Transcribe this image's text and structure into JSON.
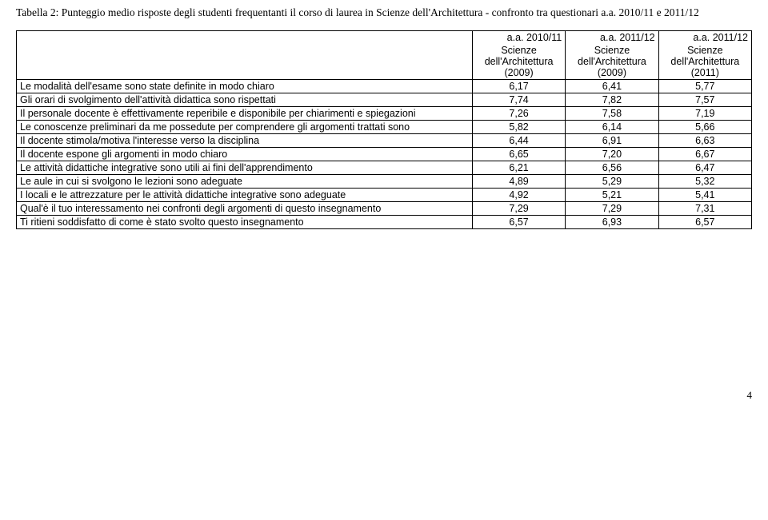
{
  "title": "Tabella 2:  Punteggio medio risposte degli studenti frequentanti il corso di laurea in Scienze dell'Architettura  - confronto tra questionari  a.a. 2010/11 e 2011/12",
  "header": {
    "top": [
      "a.a. 2010/11",
      "a.a. 2011/12",
      "a.a. 2011/12"
    ],
    "bottom": [
      "Scienze dell'Architettura (2009)",
      "Scienze dell'Architettura (2009)",
      "Scienze dell'Architettura (2011)"
    ]
  },
  "rows": [
    {
      "label": "Le modalità dell'esame sono state definite in modo chiaro",
      "v": [
        "6,17",
        "6,41",
        "5,77"
      ]
    },
    {
      "label": "Gli orari di svolgimento dell'attività didattica sono rispettati",
      "v": [
        "7,74",
        "7,82",
        "7,57"
      ]
    },
    {
      "label": "Il personale docente è effettivamente reperibile e disponibile per chiarimenti e spiegazioni",
      "v": [
        "7,26",
        "7,58",
        "7,19"
      ]
    },
    {
      "label": "Le conoscenze preliminari da me possedute per comprendere gli argomenti trattati sono",
      "v": [
        "5,82",
        "6,14",
        "5,66"
      ]
    },
    {
      "label": "Il docente stimola/motiva l'interesse verso la disciplina",
      "v": [
        "6,44",
        "6,91",
        "6,63"
      ]
    },
    {
      "label": "Il docente espone gli argomenti in modo chiaro",
      "v": [
        "6,65",
        "7,20",
        "6,67"
      ]
    },
    {
      "label": "Le attività didattiche integrative sono utili ai fini dell'apprendimento",
      "v": [
        "6,21",
        "6,56",
        "6,47"
      ]
    },
    {
      "label": "Le aule in cui si svolgono le lezioni sono adeguate",
      "v": [
        "4,89",
        "5,29",
        "5,32"
      ]
    },
    {
      "label": "I locali e le attrezzature per le attività didattiche integrative sono adeguate",
      "v": [
        "4,92",
        "5,21",
        "5,41"
      ]
    },
    {
      "label": "Qual'è il tuo interessamento nei confronti degli argomenti di questo insegnamento",
      "v": [
        "7,29",
        "7,29",
        "7,31"
      ]
    },
    {
      "label": "Ti ritieni soddisfatto di come è stato svolto questo insegnamento",
      "v": [
        "6,57",
        "6,93",
        "6,57"
      ]
    }
  ],
  "page_number": "4",
  "style": {
    "background_color": "#ffffff",
    "text_color": "#000000",
    "border_color": "#000000",
    "title_font": "Times New Roman",
    "body_font": "Arial",
    "body_fontsize_pt": 9,
    "title_fontsize_pt": 10,
    "columns": {
      "label_width_pct": 62,
      "value_width_pct": 12.66
    },
    "num_alignment": "center",
    "header_top_alignment": "right",
    "header_bottom_alignment": "center"
  }
}
